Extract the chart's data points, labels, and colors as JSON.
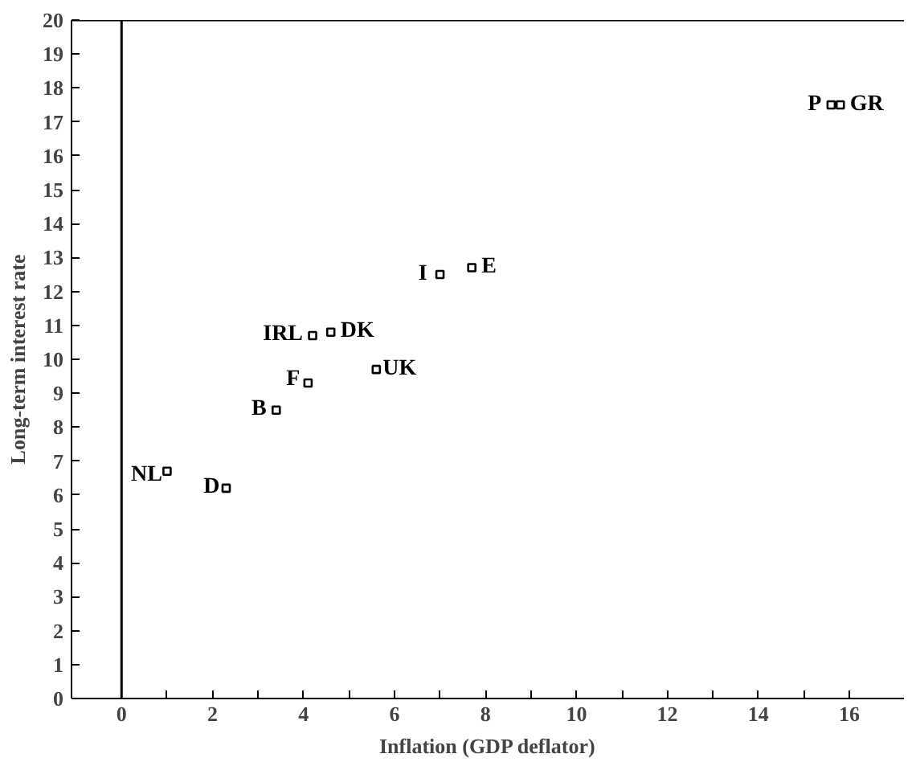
{
  "chart_data": {
    "type": "scatter",
    "xlabel": "Inflation (GDP deflator)",
    "ylabel": "Long-term interest rate",
    "marker": "square",
    "grid": false,
    "xlim": [
      -1.1,
      17.2
    ],
    "ylim": [
      0,
      20
    ],
    "xticks": [
      0,
      {
        "value": 1,
        "label": null
      },
      2,
      {
        "value": 3,
        "label": null
      },
      4,
      {
        "value": 5,
        "label": null
      },
      6,
      {
        "value": 7,
        "label": null
      },
      8,
      {
        "value": 9,
        "label": null
      },
      10,
      {
        "value": 11,
        "label": null
      },
      12,
      {
        "value": 13,
        "label": null
      },
      14,
      {
        "value": 15,
        "label": null
      },
      16
    ],
    "yticks": [
      0,
      1,
      2,
      3,
      4,
      5,
      6,
      7,
      8,
      9,
      10,
      11,
      12,
      13,
      14,
      15,
      16,
      17,
      18,
      19,
      20
    ],
    "ref_lines": [
      {
        "axis": "x",
        "value": 0,
        "color": "#000000"
      }
    ],
    "series": [
      {
        "name": "NL",
        "color": "#000000",
        "x": [
          1.0
        ],
        "values": [
          6.7
        ]
      },
      {
        "name": "D",
        "color": "#000000",
        "x": [
          2.3
        ],
        "values": [
          6.2
        ]
      },
      {
        "name": "B",
        "color": "#000000",
        "x": [
          3.4
        ],
        "values": [
          8.5
        ]
      },
      {
        "name": "F",
        "color": "#000000",
        "x": [
          4.1
        ],
        "values": [
          9.3
        ]
      },
      {
        "name": "UK",
        "color": "#000000",
        "x": [
          5.6
        ],
        "values": [
          9.7
        ]
      },
      {
        "name": "IRL",
        "color": "#000000",
        "x": [
          4.2
        ],
        "values": [
          10.7
        ]
      },
      {
        "name": "DK",
        "color": "#000000",
        "x": [
          4.6
        ],
        "values": [
          10.8
        ]
      },
      {
        "name": "I",
        "color": "#000000",
        "x": [
          7.0
        ],
        "values": [
          12.5
        ]
      },
      {
        "name": "E",
        "color": "#000000",
        "x": [
          7.7
        ],
        "values": [
          12.7
        ]
      },
      {
        "name": "P",
        "color": "#000000",
        "x": [
          15.6
        ],
        "values": [
          17.5
        ]
      },
      {
        "name": "GR",
        "color": "#000000",
        "x": [
          15.8
        ],
        "values": [
          17.5
        ]
      }
    ]
  }
}
